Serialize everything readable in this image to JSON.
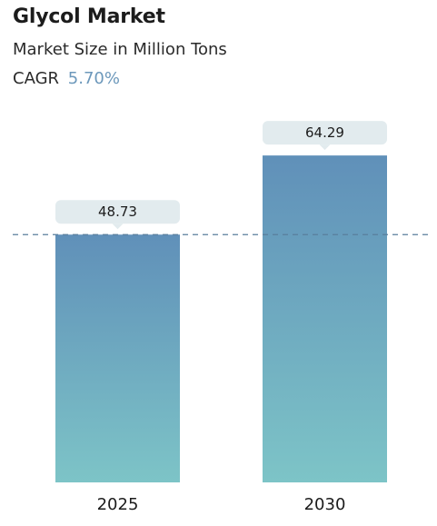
{
  "header": {
    "title": "Glycol Market",
    "subtitle": "Market Size in Million Tons",
    "cagr_label": "CAGR",
    "cagr_value": "5.70%"
  },
  "colors": {
    "bar_top": "#6090b9",
    "bar_bottom": "#7dc4c7",
    "callout_bg": "#e2ebee",
    "reference_line": "#5a7f9c"
  },
  "chart_data": {
    "type": "bar",
    "title": "Glycol Market",
    "subtitle": "Market Size in Million Tons",
    "categories": [
      "2025",
      "2030"
    ],
    "values": [
      48.73,
      64.29
    ],
    "value_labels": [
      "48.73",
      "64.29"
    ],
    "ylim": [
      0,
      77
    ],
    "reference_line": 48.73,
    "grid": false,
    "legend": "none"
  }
}
